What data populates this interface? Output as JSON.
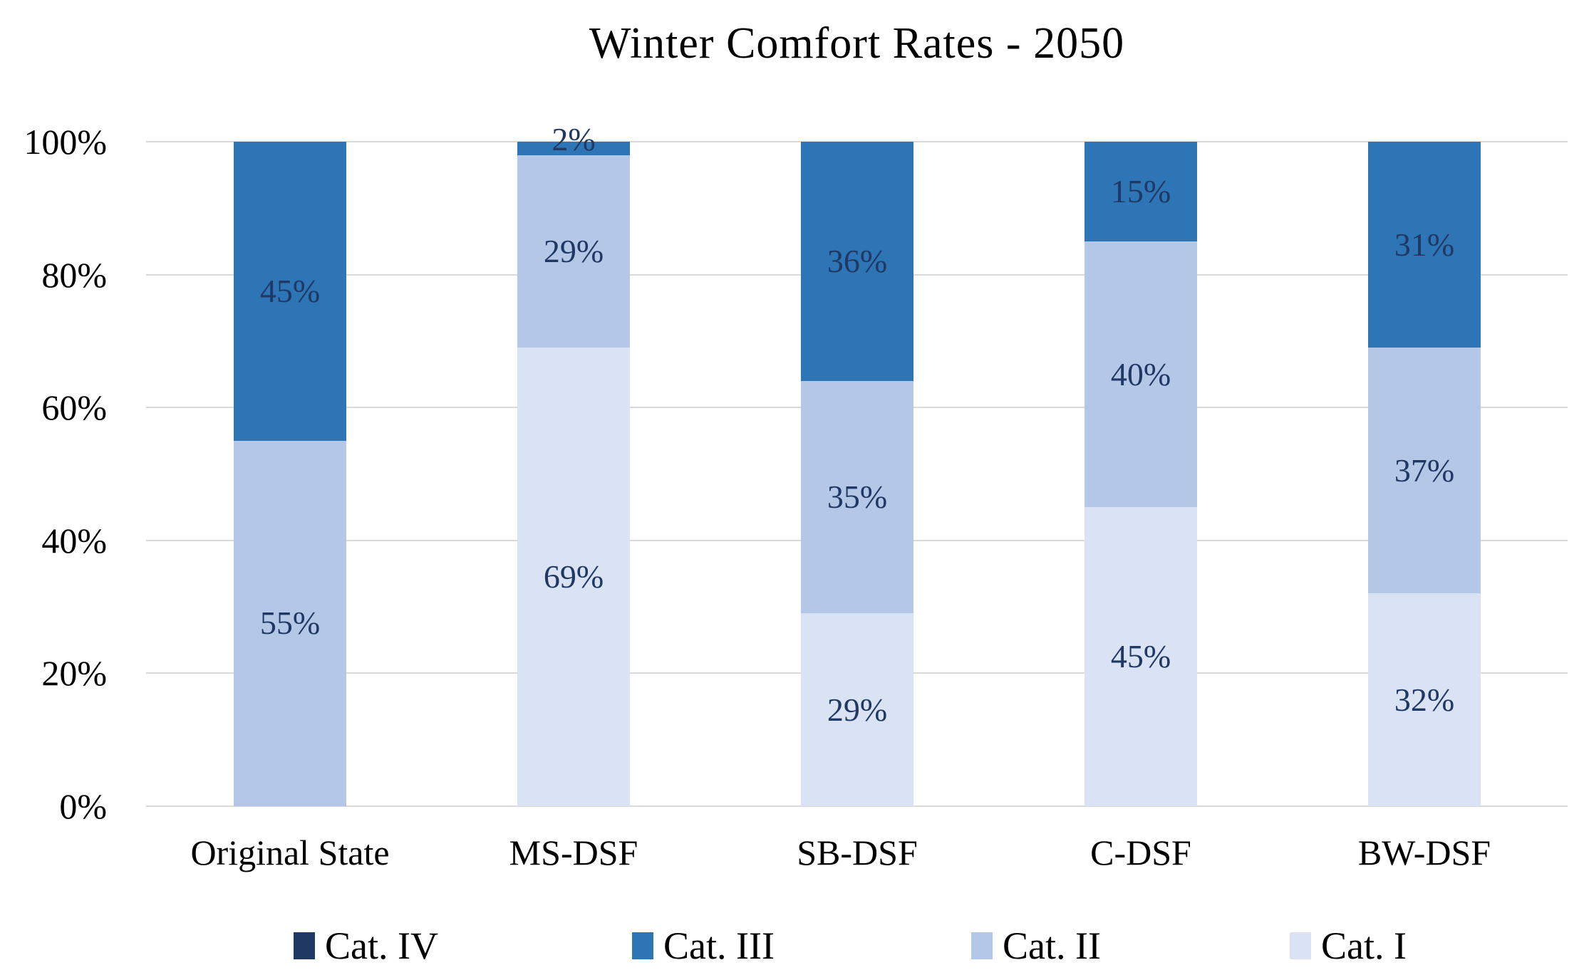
{
  "title": "Winter Comfort Rates - 2050",
  "chart_data": {
    "type": "bar",
    "variant": "stacked-percentage",
    "title": "Winter Comfort Rates - 2050",
    "categories": [
      "Original State",
      "MS-DSF",
      "SB-DSF",
      "C-DSF",
      "BW-DSF"
    ],
    "series": [
      {
        "name": "Cat. I",
        "color": "#dae3f3",
        "values": [
          0,
          69,
          29,
          45,
          32
        ]
      },
      {
        "name": "Cat. II",
        "color": "#b4c7e7",
        "values": [
          55,
          29,
          35,
          40,
          37
        ]
      },
      {
        "name": "Cat. III",
        "color": "#2e75b6",
        "values": [
          45,
          2,
          36,
          15,
          31
        ]
      },
      {
        "name": "Cat. IV",
        "color": "#1f3864",
        "values": [
          0,
          0,
          0,
          0,
          0
        ]
      }
    ],
    "data_labels": {
      "Original State": [
        "55%",
        "45%"
      ],
      "MS-DSF": [
        "69%",
        "29%",
        "2%"
      ],
      "SB-DSF": [
        "29%",
        "35%",
        "36%"
      ],
      "C-DSF": [
        "45%",
        "40%",
        "15%"
      ],
      "BW-DSF": [
        "32%",
        "37%",
        "31%"
      ]
    },
    "y_axis": {
      "ticks": [
        "100%",
        "80%",
        "60%",
        "40%",
        "20%",
        "0%"
      ],
      "range": [
        0,
        100
      ]
    },
    "grid": true,
    "gridline_color": "#d9d9d9",
    "label_color": "#1f3864",
    "legend": {
      "position": "bottom",
      "entries": [
        "Cat. IV",
        "Cat. III",
        "Cat. II",
        "Cat. I"
      ]
    }
  }
}
